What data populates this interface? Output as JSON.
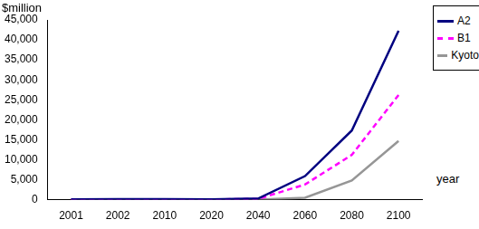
{
  "chart_data": {
    "type": "line",
    "y_label": "$million",
    "x_label": "year",
    "categories": [
      "2001",
      "2002",
      "2010",
      "2020",
      "2040",
      "2060",
      "2080",
      "2100"
    ],
    "series": [
      {
        "name": "A2",
        "color": "#000080",
        "line_style": "solid",
        "values": [
          100,
          150,
          150,
          100,
          300,
          5900,
          17300,
          42300
        ]
      },
      {
        "name": "B1",
        "color": "#ff00ff",
        "line_style": "dashed",
        "values": [
          100,
          100,
          100,
          50,
          200,
          3800,
          11200,
          26200
        ]
      },
      {
        "name": "Kyoto",
        "color": "#969696",
        "line_style": "solid",
        "values": [
          0,
          0,
          0,
          0,
          0,
          500,
          4800,
          14700
        ]
      }
    ],
    "ylim": [
      0,
      45000
    ],
    "yticks": [
      0,
      {
        "value": 5000,
        "label": "5,000"
      },
      {
        "value": 10000,
        "label": "10,000"
      },
      {
        "value": 15000,
        "label": "15,000"
      },
      {
        "value": 20000,
        "label": "20,000"
      },
      {
        "value": 25000,
        "label": "25,000"
      },
      {
        "value": 30000,
        "label": "30,000"
      },
      {
        "value": 35000,
        "label": "35,000"
      },
      {
        "value": 40000,
        "label": "40,000"
      },
      {
        "value": 45000,
        "label": "45,000"
      }
    ],
    "grid": false,
    "legend": "right"
  }
}
